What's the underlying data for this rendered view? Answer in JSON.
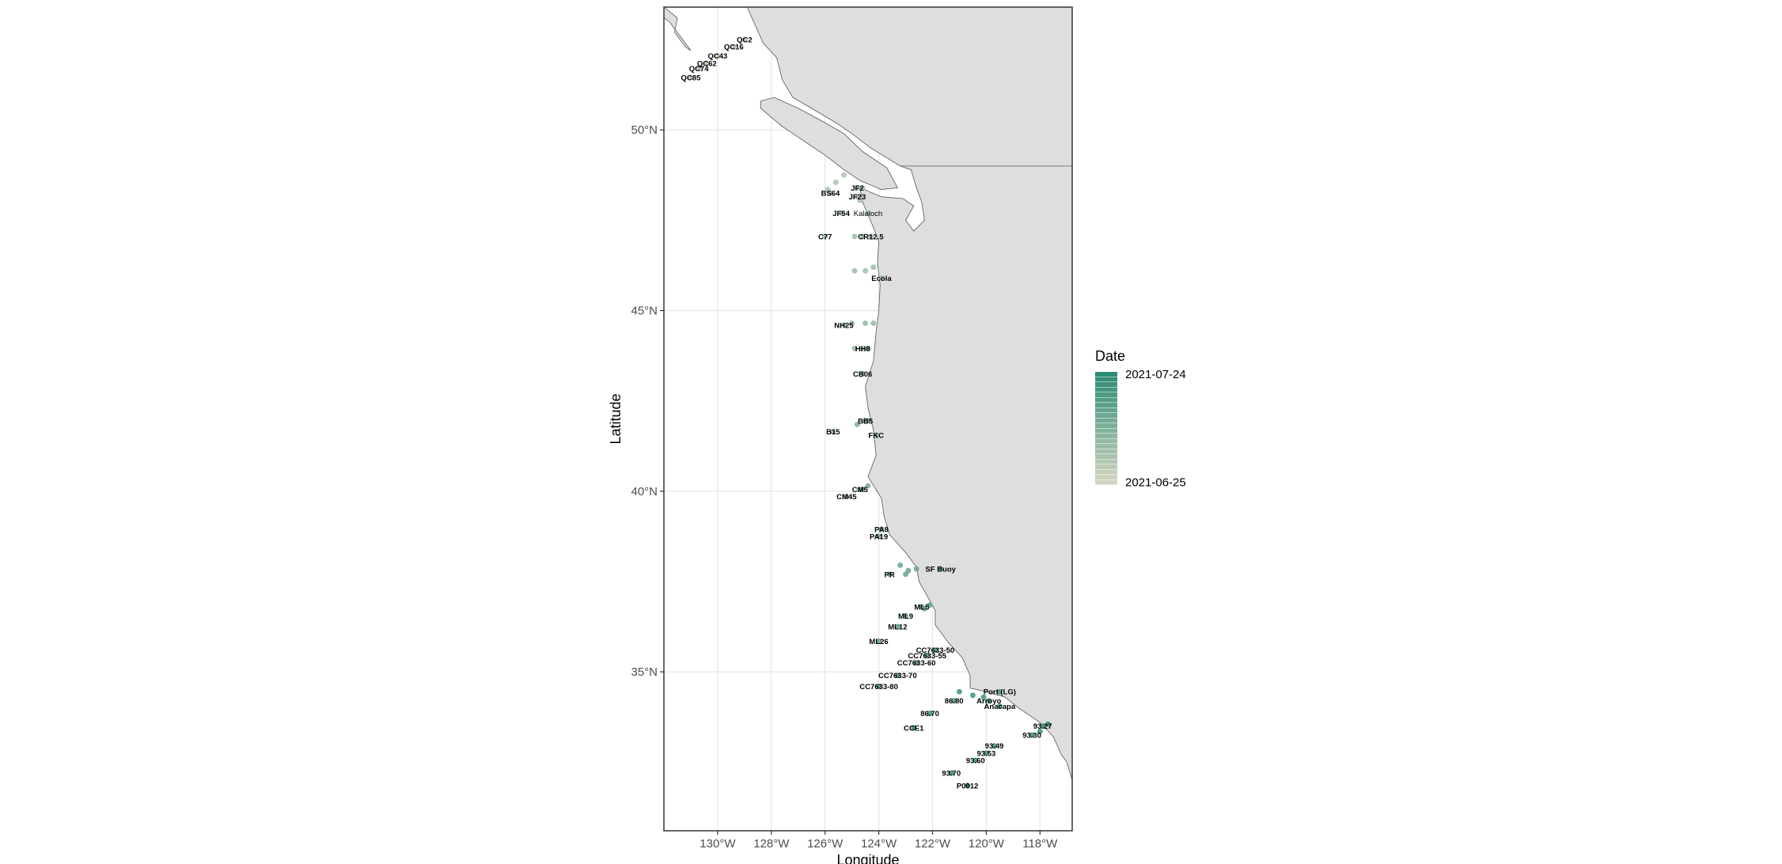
{
  "map": {
    "x_axis": {
      "title": "Longitude",
      "range": [
        -132,
        -116.8
      ],
      "ticks": [
        {
          "value": -130,
          "label": "130°W"
        },
        {
          "value": -128,
          "label": "128°W"
        },
        {
          "value": -126,
          "label": "126°W"
        },
        {
          "value": -124,
          "label": "124°W"
        },
        {
          "value": -122,
          "label": "122°W"
        },
        {
          "value": -120,
          "label": "120°W"
        },
        {
          "value": -118,
          "label": "118°W"
        }
      ]
    },
    "y_axis": {
      "title": "Latitude",
      "range": [
        30.6,
        53.4
      ],
      "ticks": [
        {
          "value": 35,
          "label": "35°N"
        },
        {
          "value": 40,
          "label": "40°N"
        },
        {
          "value": 45,
          "label": "45°N"
        },
        {
          "value": 50,
          "label": "50°N"
        }
      ]
    },
    "grid": true,
    "colors": {
      "land": "#dedede",
      "land_border": "#555555",
      "grid": "#e6e6e6",
      "panel_border": "#333333",
      "date_low": "#d2d6c0",
      "date_high": "#2e8b74"
    },
    "legend": {
      "title": "Date",
      "position": "right",
      "first_label": "2021-07-24",
      "last_label": "2021-06-25",
      "entry_count": 22
    },
    "stations": [
      {
        "label": "QC2",
        "lon": -129.0,
        "lat": 52.5,
        "d": 0.15
      },
      {
        "label": "QC16",
        "lon": -129.4,
        "lat": 52.3,
        "d": 0.15
      },
      {
        "label": "QC43",
        "lon": -130.0,
        "lat": 52.05,
        "d": 0.15
      },
      {
        "label": "QC62",
        "lon": -130.4,
        "lat": 51.85,
        "d": 0.15
      },
      {
        "label": "QC74",
        "lon": -130.7,
        "lat": 51.7,
        "d": 0.15
      },
      {
        "label": "QC85",
        "lon": -131.0,
        "lat": 51.45,
        "d": 0.15
      },
      {
        "label": "BS64",
        "lon": -125.8,
        "lat": 48.25,
        "d": 0.2
      },
      {
        "label": "JF2",
        "lon": -124.8,
        "lat": 48.4,
        "d": 0.25
      },
      {
        "label": "JF23",
        "lon": -124.8,
        "lat": 48.15,
        "d": 0.25
      },
      {
        "label": "JF54",
        "lon": -125.4,
        "lat": 47.7,
        "d": 0.25
      },
      {
        "label": "Kalaloch",
        "lon": -124.4,
        "lat": 47.7,
        "d": 0.25,
        "plain": true
      },
      {
        "label": "C77",
        "lon": -126.0,
        "lat": 47.05,
        "d": 0.3
      },
      {
        "label": "CR12.5",
        "lon": -124.3,
        "lat": 47.05,
        "d": 0.3
      },
      {
        "label": "Ecola",
        "lon": -123.9,
        "lat": 45.9,
        "d": 0.3
      },
      {
        "label": "NH25",
        "lon": -125.3,
        "lat": 44.6,
        "d": 0.35
      },
      {
        "label": "HH8",
        "lon": -124.6,
        "lat": 43.95,
        "d": 0.35
      },
      {
        "label": "CB06",
        "lon": -124.6,
        "lat": 43.25,
        "d": 0.4
      },
      {
        "label": "BB5",
        "lon": -124.5,
        "lat": 41.95,
        "d": 0.45
      },
      {
        "label": "B15",
        "lon": -125.7,
        "lat": 41.65,
        "d": 0.45
      },
      {
        "label": "FKC",
        "lon": -124.1,
        "lat": 41.55,
        "d": 0.45
      },
      {
        "label": "CM5",
        "lon": -124.7,
        "lat": 40.05,
        "d": 0.5
      },
      {
        "label": "CM45",
        "lon": -125.2,
        "lat": 39.85,
        "d": 0.5
      },
      {
        "label": "PA8",
        "lon": -123.9,
        "lat": 38.95,
        "d": 0.55
      },
      {
        "label": "PA19",
        "lon": -124.0,
        "lat": 38.75,
        "d": 0.55
      },
      {
        "label": "SF Buoy",
        "lon": -121.7,
        "lat": 37.85,
        "d": 0.6
      },
      {
        "label": "PR",
        "lon": -123.6,
        "lat": 37.7,
        "d": 0.6
      },
      {
        "label": "ML5",
        "lon": -122.4,
        "lat": 36.8,
        "d": 0.65
      },
      {
        "label": "ML9",
        "lon": -123.0,
        "lat": 36.55,
        "d": 0.65
      },
      {
        "label": "ML12",
        "lon": -123.3,
        "lat": 36.25,
        "d": 0.65
      },
      {
        "label": "ML26",
        "lon": -124.0,
        "lat": 35.85,
        "d": 0.65
      },
      {
        "label": "CC7633-50",
        "lon": -121.9,
        "lat": 35.6,
        "d": 0.7
      },
      {
        "label": "CC7633-55",
        "lon": -122.2,
        "lat": 35.45,
        "d": 0.7
      },
      {
        "label": "CC7633-60",
        "lon": -122.6,
        "lat": 35.25,
        "d": 0.7
      },
      {
        "label": "CC7633-70",
        "lon": -123.3,
        "lat": 34.9,
        "d": 0.7
      },
      {
        "label": "CC7633-80",
        "lon": -124.0,
        "lat": 34.6,
        "d": 0.75
      },
      {
        "label": "Port (LG)",
        "lon": -119.5,
        "lat": 34.45,
        "d": 0.8
      },
      {
        "label": "Arroyo",
        "lon": -119.9,
        "lat": 34.2,
        "d": 0.8
      },
      {
        "label": "Anacapa",
        "lon": -119.5,
        "lat": 34.05,
        "d": 0.8
      },
      {
        "label": "86.80",
        "lon": -121.2,
        "lat": 34.2,
        "d": 0.8
      },
      {
        "label": "86.70",
        "lon": -122.1,
        "lat": 33.85,
        "d": 0.85
      },
      {
        "label": "CCE1",
        "lon": -122.7,
        "lat": 33.45,
        "d": 0.85
      },
      {
        "label": "93.27",
        "lon": -117.9,
        "lat": 33.5,
        "d": 0.9
      },
      {
        "label": "93.30",
        "lon": -118.3,
        "lat": 33.25,
        "d": 0.9
      },
      {
        "label": "93.49",
        "lon": -119.7,
        "lat": 32.95,
        "d": 0.9
      },
      {
        "label": "93.53",
        "lon": -120.0,
        "lat": 32.75,
        "d": 0.9
      },
      {
        "label": "93.60",
        "lon": -120.4,
        "lat": 32.55,
        "d": 0.95
      },
      {
        "label": "93.70",
        "lon": -121.3,
        "lat": 32.2,
        "d": 0.95
      },
      {
        "label": "P0012",
        "lon": -120.7,
        "lat": 31.85,
        "d": 1.0
      }
    ],
    "marker_clusters": [
      {
        "lon": -125.3,
        "lat": 48.75,
        "d": 0.2
      },
      {
        "lon": -125.6,
        "lat": 48.55,
        "d": 0.2
      },
      {
        "lon": -125.9,
        "lat": 48.35,
        "d": 0.2
      },
      {
        "lon": -124.6,
        "lat": 48.4,
        "d": 0.25
      },
      {
        "lon": -124.7,
        "lat": 48.05,
        "d": 0.25
      },
      {
        "lon": -124.9,
        "lat": 47.05,
        "d": 0.3
      },
      {
        "lon": -124.6,
        "lat": 47.05,
        "d": 0.3
      },
      {
        "lon": -124.9,
        "lat": 46.1,
        "d": 0.3
      },
      {
        "lon": -124.5,
        "lat": 46.1,
        "d": 0.3
      },
      {
        "lon": -124.2,
        "lat": 46.2,
        "d": 0.3
      },
      {
        "lon": -125.0,
        "lat": 44.65,
        "d": 0.35
      },
      {
        "lon": -124.5,
        "lat": 44.65,
        "d": 0.35
      },
      {
        "lon": -124.2,
        "lat": 44.65,
        "d": 0.35
      },
      {
        "lon": -124.9,
        "lat": 43.95,
        "d": 0.35
      },
      {
        "lon": -124.4,
        "lat": 43.95,
        "d": 0.35
      },
      {
        "lon": -124.8,
        "lat": 41.85,
        "d": 0.45
      },
      {
        "lon": -124.4,
        "lat": 41.95,
        "d": 0.45
      },
      {
        "lon": -124.4,
        "lat": 40.15,
        "d": 0.5
      },
      {
        "lon": -124.6,
        "lat": 40.05,
        "d": 0.5
      },
      {
        "lon": -123.2,
        "lat": 37.95,
        "d": 0.6
      },
      {
        "lon": -122.9,
        "lat": 37.8,
        "d": 0.6
      },
      {
        "lon": -122.6,
        "lat": 37.85,
        "d": 0.6
      },
      {
        "lon": -123.0,
        "lat": 37.7,
        "d": 0.6
      },
      {
        "lon": -122.1,
        "lat": 36.85,
        "d": 0.65
      },
      {
        "lon": -122.3,
        "lat": 36.75,
        "d": 0.65
      },
      {
        "lon": -121.0,
        "lat": 34.45,
        "d": 0.8
      },
      {
        "lon": -120.5,
        "lat": 34.35,
        "d": 0.8
      },
      {
        "lon": -120.1,
        "lat": 34.3,
        "d": 0.8
      },
      {
        "lon": -117.7,
        "lat": 33.55,
        "d": 0.9
      },
      {
        "lon": -118.0,
        "lat": 33.35,
        "d": 0.9
      }
    ],
    "coastline_mainland": [
      [
        -128.9,
        53.4
      ],
      [
        -128.6,
        52.9
      ],
      [
        -128.3,
        52.4
      ],
      [
        -127.8,
        52.0
      ],
      [
        -127.6,
        51.4
      ],
      [
        -127.2,
        50.9
      ],
      [
        -126.5,
        50.6
      ],
      [
        -125.6,
        50.2
      ],
      [
        -125.0,
        49.9
      ],
      [
        -124.3,
        49.5
      ],
      [
        -123.2,
        49.0
      ],
      [
        -122.8,
        48.9
      ],
      [
        -122.6,
        48.4
      ],
      [
        -122.4,
        48.0
      ],
      [
        -122.3,
        47.5
      ],
      [
        -122.7,
        47.2
      ],
      [
        -123.0,
        47.5
      ],
      [
        -122.7,
        47.9
      ],
      [
        -123.1,
        48.1
      ],
      [
        -123.9,
        48.15
      ],
      [
        -124.7,
        48.4
      ],
      [
        -124.6,
        48.0
      ],
      [
        -124.2,
        47.3
      ],
      [
        -124.0,
        46.9
      ],
      [
        -124.05,
        46.3
      ],
      [
        -123.95,
        45.7
      ],
      [
        -124.0,
        45.0
      ],
      [
        -124.1,
        44.4
      ],
      [
        -124.2,
        43.6
      ],
      [
        -124.5,
        42.9
      ],
      [
        -124.4,
        42.3
      ],
      [
        -124.2,
        41.7
      ],
      [
        -124.1,
        41.0
      ],
      [
        -124.4,
        40.4
      ],
      [
        -123.9,
        39.8
      ],
      [
        -123.8,
        39.3
      ],
      [
        -123.6,
        38.8
      ],
      [
        -123.0,
        38.3
      ],
      [
        -122.6,
        37.9
      ],
      [
        -122.5,
        37.5
      ],
      [
        -122.2,
        37.1
      ],
      [
        -121.9,
        36.7
      ],
      [
        -121.9,
        36.3
      ],
      [
        -121.4,
        35.8
      ],
      [
        -120.9,
        35.4
      ],
      [
        -120.6,
        34.9
      ],
      [
        -120.6,
        34.55
      ],
      [
        -120.0,
        34.45
      ],
      [
        -119.3,
        34.3
      ],
      [
        -118.8,
        34.0
      ],
      [
        -118.4,
        33.8
      ],
      [
        -118.0,
        33.6
      ],
      [
        -117.5,
        33.2
      ],
      [
        -117.2,
        32.7
      ],
      [
        -117.0,
        32.5
      ],
      [
        -116.8,
        32.0
      ]
    ],
    "vancouver_island": [
      [
        -128.4,
        50.8
      ],
      [
        -127.9,
        50.9
      ],
      [
        -127.0,
        50.6
      ],
      [
        -126.0,
        50.2
      ],
      [
        -125.3,
        49.9
      ],
      [
        -124.6,
        49.4
      ],
      [
        -123.7,
        48.95
      ],
      [
        -123.3,
        48.4
      ],
      [
        -123.9,
        48.35
      ],
      [
        -124.7,
        48.6
      ],
      [
        -125.3,
        48.9
      ],
      [
        -126.0,
        49.3
      ],
      [
        -126.8,
        49.7
      ],
      [
        -127.6,
        50.1
      ],
      [
        -128.4,
        50.6
      ]
    ],
    "haida_gwaii": [
      [
        -132.0,
        53.4
      ],
      [
        -131.5,
        53.1
      ],
      [
        -131.6,
        52.7
      ],
      [
        -131.2,
        52.3
      ],
      [
        -131.0,
        52.2
      ],
      [
        -131.4,
        52.6
      ],
      [
        -131.8,
        53.0
      ],
      [
        -132.0,
        53.1
      ]
    ],
    "border_segment": [
      [
        -123.2,
        49.0
      ],
      [
        -116.8,
        49.0
      ]
    ]
  }
}
